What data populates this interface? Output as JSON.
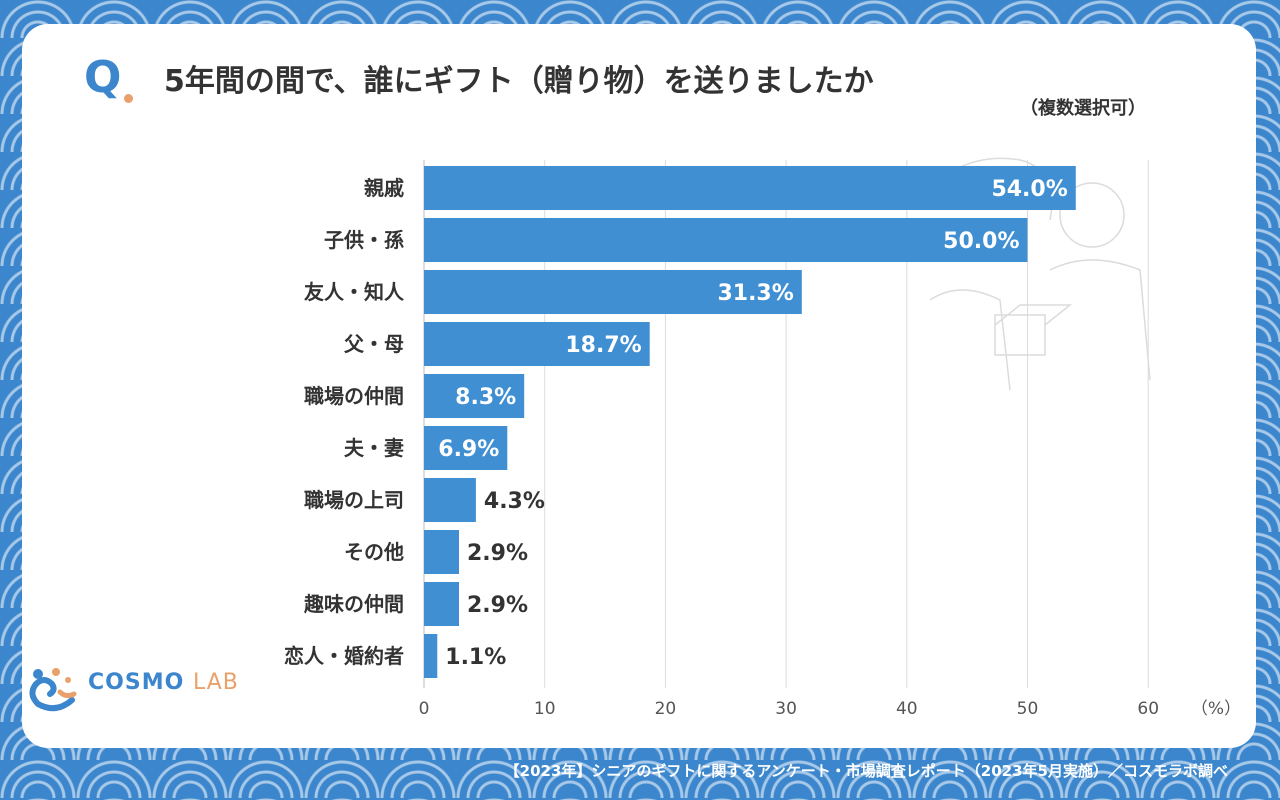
{
  "header": {
    "q_mark": "Q",
    "title": "5年間の間で、誰にギフト（贈り物）を送りましたか",
    "subtitle": "（複数選択可）"
  },
  "logo": {
    "main": "COSMO",
    "sub": "LAB"
  },
  "footer": "【2023年】シニアのギフトに関するアンケート・市場調査レポート（2023年5月実施）／コスモラボ調べ",
  "colors": {
    "bar": "#3f8fd2",
    "background": "#3b86cc",
    "accent": "#e9a06a"
  },
  "chart_data": {
    "type": "bar",
    "orientation": "horizontal",
    "title": "5年間の間で、誰にギフト（贈り物）を送りましたか",
    "categories": [
      "親戚",
      "子供・孫",
      "友人・知人",
      "父・母",
      "職場の仲間",
      "夫・妻",
      "職場の上司",
      "その他",
      "趣味の仲間",
      "恋人・婚約者"
    ],
    "values": [
      54.0,
      50.0,
      31.3,
      18.7,
      8.3,
      6.9,
      4.3,
      2.9,
      2.9,
      1.1
    ],
    "value_labels": [
      "54.0%",
      "50.0%",
      "31.3%",
      "18.7%",
      "8.3%",
      "6.9%",
      "4.3%",
      "2.9%",
      "2.9%",
      "1.1%"
    ],
    "x_ticks": [
      "0",
      "10",
      "20",
      "30",
      "40",
      "50",
      "60"
    ],
    "xlabel": "（%）",
    "xlim": [
      0,
      60
    ],
    "grid": "vertical"
  }
}
